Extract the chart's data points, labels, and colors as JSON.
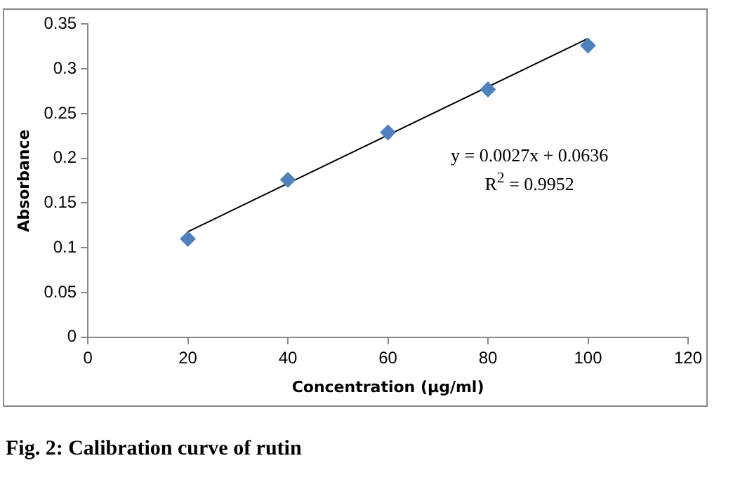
{
  "chart_data": {
    "type": "scatter",
    "xlabel": "Concentration (µg/ml)",
    "ylabel": "Absorbance",
    "series": [
      {
        "color": "#4f81bd",
        "x": [
          20,
          40,
          60,
          80,
          100
        ],
        "values": [
          0.11,
          0.176,
          0.229,
          0.277,
          0.326
        ],
        "marker": "diamond"
      },
      {
        "type": "line",
        "color": "#000000",
        "x": [
          20,
          100
        ],
        "values": [
          0.118,
          0.334
        ],
        "marker": "none"
      }
    ],
    "xlim": [
      0,
      120
    ],
    "xticks": [
      0,
      20,
      40,
      60,
      80,
      100,
      120
    ],
    "ylim": [
      0,
      0.35
    ],
    "yticks": [
      0,
      0.05,
      0.1,
      0.15,
      0.2,
      0.25,
      0.3,
      0.35
    ],
    "grid": false,
    "legend": false,
    "annotations": [
      "y = 0.0027x + 0.0636",
      "R$^{2}$ = 0.9952",
      "Fig. 2: Calibration curve of rutin"
    ]
  }
}
